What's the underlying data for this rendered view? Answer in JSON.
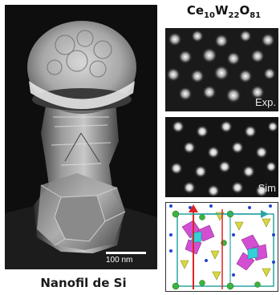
{
  "left_figure": {
    "scale_bar_label": "100 nm",
    "caption": "Nanofil de Si"
  },
  "right_figure": {
    "formula": {
      "ce": "Ce",
      "ce_sub": "10",
      "w": "W",
      "w_sub": "22",
      "o": "O",
      "o_sub": "81"
    },
    "panel_exp_label": "Exp.",
    "panel_sim_label": "Sim"
  }
}
